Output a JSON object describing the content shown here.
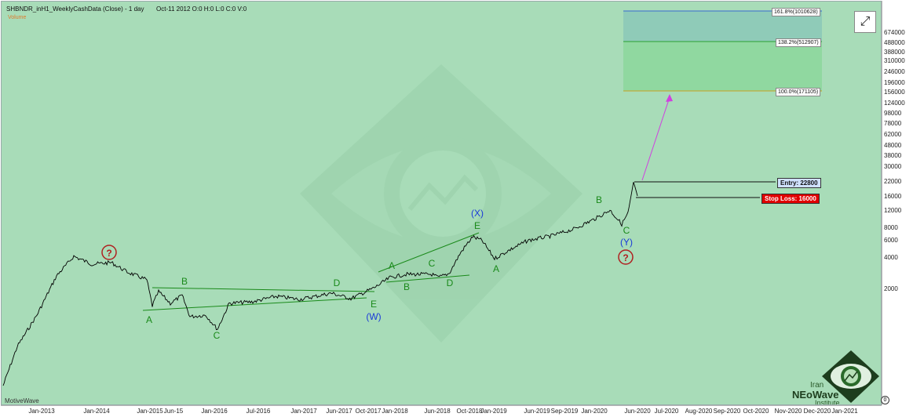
{
  "header": {
    "title": "SHBNDR_inH1_WeeklyCashData (Close) - 1 day",
    "ohlc": "Oct-11 2012  O:0  H:0  L:0  C:0  V:0",
    "volume_label": "Volume"
  },
  "brand_label": "MotiveWave",
  "watermark_url": "motivewave.com",
  "controls": {
    "expand_icon": "expand-arrows-icon",
    "close_icon": "close-icon"
  },
  "price_axis": [
    "674000",
    "488000",
    "388000",
    "310000",
    "246000",
    "196000",
    "156000",
    "124000",
    "98000",
    "78000",
    "62000",
    "48000",
    "38000",
    "30000",
    "22000",
    "16000",
    "12000",
    "8000",
    "6000",
    "4000",
    "2000"
  ],
  "time_axis": [
    "Jan-2013",
    "Jan-2014",
    "Jan-2015",
    "Jun-15",
    "Jan-2016",
    "Jul-2016",
    "Jan-2017",
    "Jun-2017",
    "Oct-2017",
    "Jan-2018",
    "Jun-2018",
    "Oct-2018",
    "Jan-2019",
    "Jun-2019",
    "Sep-2019",
    "Jan-2020",
    "Jun-2020",
    "Jul-2020",
    "Aug-2020",
    "Sep-2020",
    "Oct-2020",
    "Nov-2020",
    "Dec-2020",
    "Jan-2021"
  ],
  "fib_levels": [
    {
      "label": "161.8%(1010628)"
    },
    {
      "label": "138.2%(512907)"
    },
    {
      "label": "100.0%(171105)"
    }
  ],
  "entry_label": "Entry: 22800",
  "stop_label": "Stop Loss: 16000",
  "wave_labels": {
    "q1": "?",
    "q2": "?",
    "A1": "A",
    "B1": "B",
    "C1": "C",
    "D1": "D",
    "E1": "E",
    "W": "(W)",
    "A2": "A",
    "B2": "B",
    "C2": "C",
    "D2": "D",
    "E2": "E",
    "X": "(X)",
    "A3": "A",
    "B3": "B",
    "C3": "C",
    "Y": "(Y)"
  },
  "logo": {
    "line1": "Iran",
    "line2": "NEoWave",
    "line3": "Institute",
    "mark": "0"
  },
  "colors": {
    "background": "#a8dcb8",
    "wave_green": "#1a8a1a",
    "wave_blue": "#1a3ad8",
    "question_red": "#b02020",
    "arrow_magenta": "#d040e0"
  }
}
